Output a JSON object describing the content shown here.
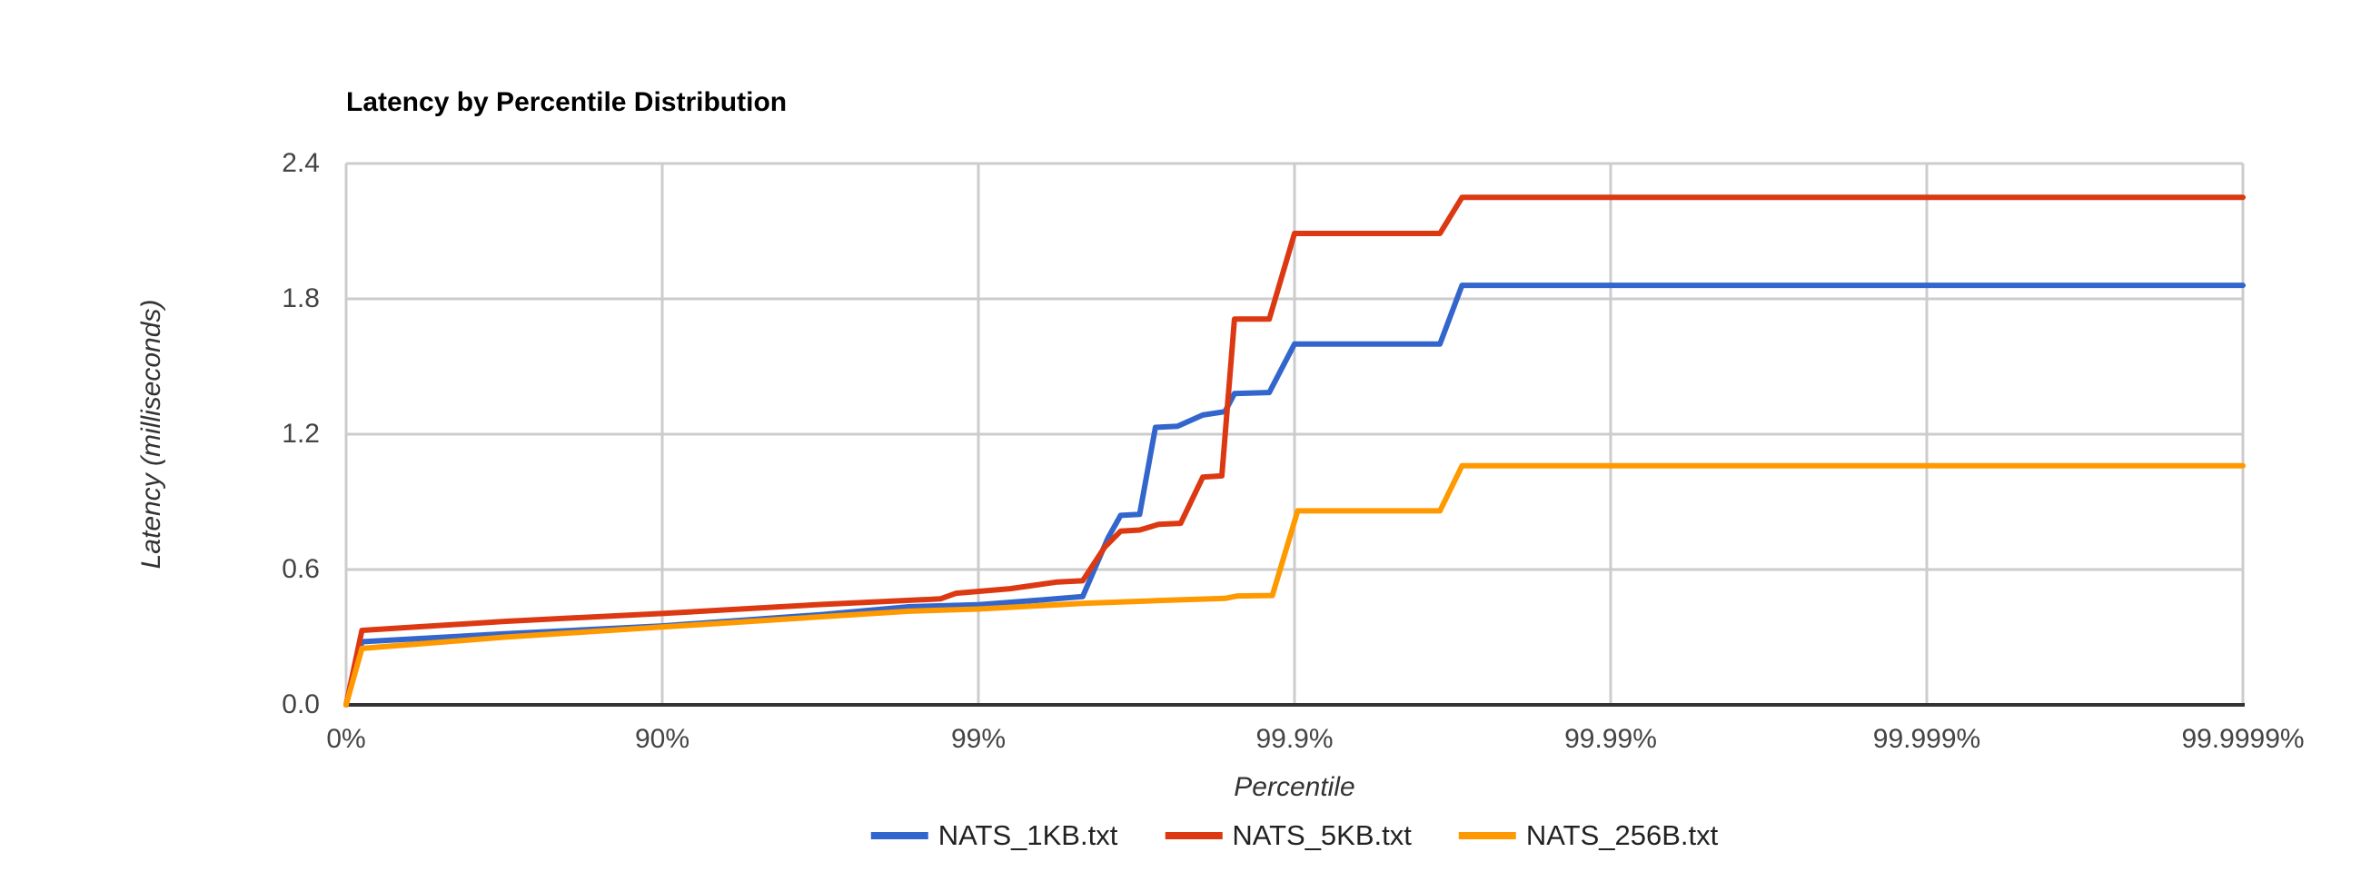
{
  "theme": {
    "title-color": "#000000",
    "axis-title-color": "#333333",
    "tick-color": "#444444",
    "legend-color": "#222222",
    "grid-color": "#cccccc",
    "axis-line-color": "#333333",
    "background": "#ffffff"
  },
  "chart_data": {
    "type": "line",
    "title": "Latency by Percentile Distribution",
    "xlabel": "Percentile",
    "ylabel": "Latency (milliseconds)",
    "x_scale": "logarithmic percentile axis (x measured in nines, n = -log10(1-p))",
    "xlim_nines": [
      0,
      6
    ],
    "ylim": [
      0,
      2.4
    ],
    "grid": true,
    "legend_position": "bottom",
    "x_ticks": [
      {
        "nines": 0,
        "label": "0%"
      },
      {
        "nines": 1,
        "label": "90%"
      },
      {
        "nines": 2,
        "label": "99%"
      },
      {
        "nines": 3,
        "label": "99.9%"
      },
      {
        "nines": 4,
        "label": "99.99%"
      },
      {
        "nines": 5,
        "label": "99.999%"
      },
      {
        "nines": 6,
        "label": "99.9999%"
      }
    ],
    "y_ticks": [
      {
        "value": 0.0,
        "label": "0.0"
      },
      {
        "value": 0.6,
        "label": "0.6"
      },
      {
        "value": 1.2,
        "label": "1.2"
      },
      {
        "value": 1.8,
        "label": "1.8"
      },
      {
        "value": 2.4,
        "label": "2.4"
      }
    ],
    "series": [
      {
        "name": "NATS_1KB.txt",
        "color": "#3366CC",
        "points_nines_ms": [
          [
            0,
            0
          ],
          [
            0.05,
            0.28
          ],
          [
            0.5,
            0.315
          ],
          [
            1,
            0.35
          ],
          [
            1.5,
            0.4
          ],
          [
            1.78,
            0.435
          ],
          [
            2,
            0.444
          ],
          [
            2.2,
            0.465
          ],
          [
            2.33,
            0.48
          ],
          [
            2.41,
            0.74
          ],
          [
            2.45,
            0.84
          ],
          [
            2.51,
            0.845
          ],
          [
            2.56,
            1.23
          ],
          [
            2.63,
            1.235
          ],
          [
            2.71,
            1.285
          ],
          [
            2.78,
            1.3
          ],
          [
            2.81,
            1.38
          ],
          [
            2.92,
            1.385
          ],
          [
            3.0,
            1.6
          ],
          [
            3.46,
            1.6
          ],
          [
            3.53,
            1.86
          ],
          [
            6,
            1.86
          ]
        ]
      },
      {
        "name": "NATS_5KB.txt",
        "color": "#DC3912",
        "points_nines_ms": [
          [
            0,
            0
          ],
          [
            0.05,
            0.33
          ],
          [
            0.5,
            0.37
          ],
          [
            1,
            0.405
          ],
          [
            1.5,
            0.445
          ],
          [
            1.88,
            0.47
          ],
          [
            1.93,
            0.495
          ],
          [
            2.1,
            0.515
          ],
          [
            2.25,
            0.545
          ],
          [
            2.33,
            0.55
          ],
          [
            2.4,
            0.7
          ],
          [
            2.45,
            0.77
          ],
          [
            2.51,
            0.775
          ],
          [
            2.57,
            0.8
          ],
          [
            2.64,
            0.805
          ],
          [
            2.71,
            1.01
          ],
          [
            2.77,
            1.015
          ],
          [
            2.81,
            1.71
          ],
          [
            2.92,
            1.71
          ],
          [
            3.0,
            2.09
          ],
          [
            3.46,
            2.09
          ],
          [
            3.53,
            2.25
          ],
          [
            6,
            2.25
          ]
        ]
      },
      {
        "name": "NATS_256B.txt",
        "color": "#FF9900",
        "points_nines_ms": [
          [
            0,
            0
          ],
          [
            0.05,
            0.25
          ],
          [
            0.5,
            0.3
          ],
          [
            1,
            0.345
          ],
          [
            1.78,
            0.415
          ],
          [
            2,
            0.425
          ],
          [
            2.33,
            0.45
          ],
          [
            2.56,
            0.462
          ],
          [
            2.78,
            0.472
          ],
          [
            2.82,
            0.483
          ],
          [
            2.93,
            0.485
          ],
          [
            3.01,
            0.86
          ],
          [
            3.46,
            0.86
          ],
          [
            3.53,
            1.06
          ],
          [
            6,
            1.06
          ]
        ]
      }
    ]
  }
}
